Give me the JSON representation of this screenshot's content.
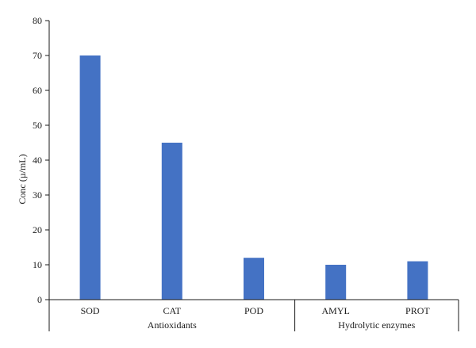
{
  "chart_data": {
    "type": "bar",
    "title": "",
    "xlabel": "",
    "ylabel": "Conc (µ/mL)",
    "ylim": [
      0,
      80
    ],
    "yticks": [
      0,
      10,
      20,
      30,
      40,
      50,
      60,
      70,
      80
    ],
    "grid": false,
    "legend": "none",
    "bar_color": "#4472c4",
    "categories": [
      "SOD",
      "CAT",
      "POD",
      "AMYL",
      "PROT"
    ],
    "values": [
      70,
      45,
      12,
      10,
      11
    ],
    "groups": [
      {
        "label": "Antioxidants",
        "categories": [
          "SOD",
          "CAT",
          "POD"
        ]
      },
      {
        "label": "Hydrolytic enzymes",
        "categories": [
          "AMYL",
          "PROT"
        ]
      }
    ]
  }
}
